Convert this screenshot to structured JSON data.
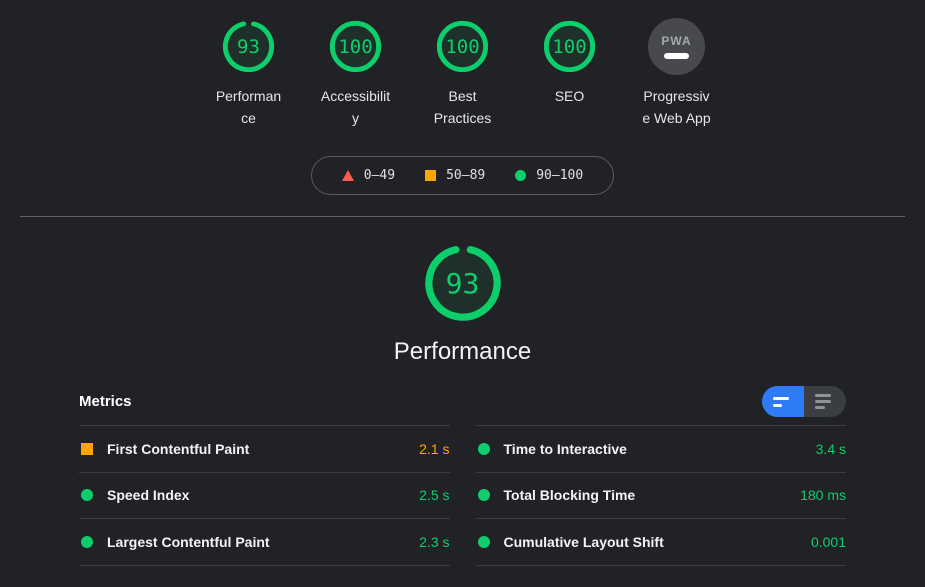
{
  "colors": {
    "pass_green": "#0cce6b",
    "average_orange": "#ffa400",
    "fail_red": "#ff5a50",
    "toggle_blue": "#2f7bf7",
    "background": "#212225"
  },
  "categories": [
    {
      "label": "Performance",
      "score": 93
    },
    {
      "label": "Accessibility",
      "score": 100
    },
    {
      "label": "Best Practices",
      "score": 100
    },
    {
      "label": "SEO",
      "score": 100
    }
  ],
  "pwa": {
    "label": "Progressive Web App",
    "badge_text": "PWA"
  },
  "legend": {
    "items": [
      {
        "shape": "triangle",
        "range": "0–49"
      },
      {
        "shape": "square",
        "range": "50–89"
      },
      {
        "shape": "circle",
        "range": "90–100"
      }
    ]
  },
  "category_header": {
    "label": "Performance",
    "score": 93
  },
  "metrics": {
    "title": "Metrics",
    "items": [
      {
        "label": "First Contentful Paint",
        "value": "2.1 s",
        "rating": "average"
      },
      {
        "label": "Speed Index",
        "value": "2.5 s",
        "rating": "pass"
      },
      {
        "label": "Largest Contentful Paint",
        "value": "2.3 s",
        "rating": "pass"
      },
      {
        "label": "Time to Interactive",
        "value": "3.4 s",
        "rating": "pass"
      },
      {
        "label": "Total Blocking Time",
        "value": "180 ms",
        "rating": "pass"
      },
      {
        "label": "Cumulative Layout Shift",
        "value": "0.001",
        "rating": "pass"
      }
    ]
  }
}
